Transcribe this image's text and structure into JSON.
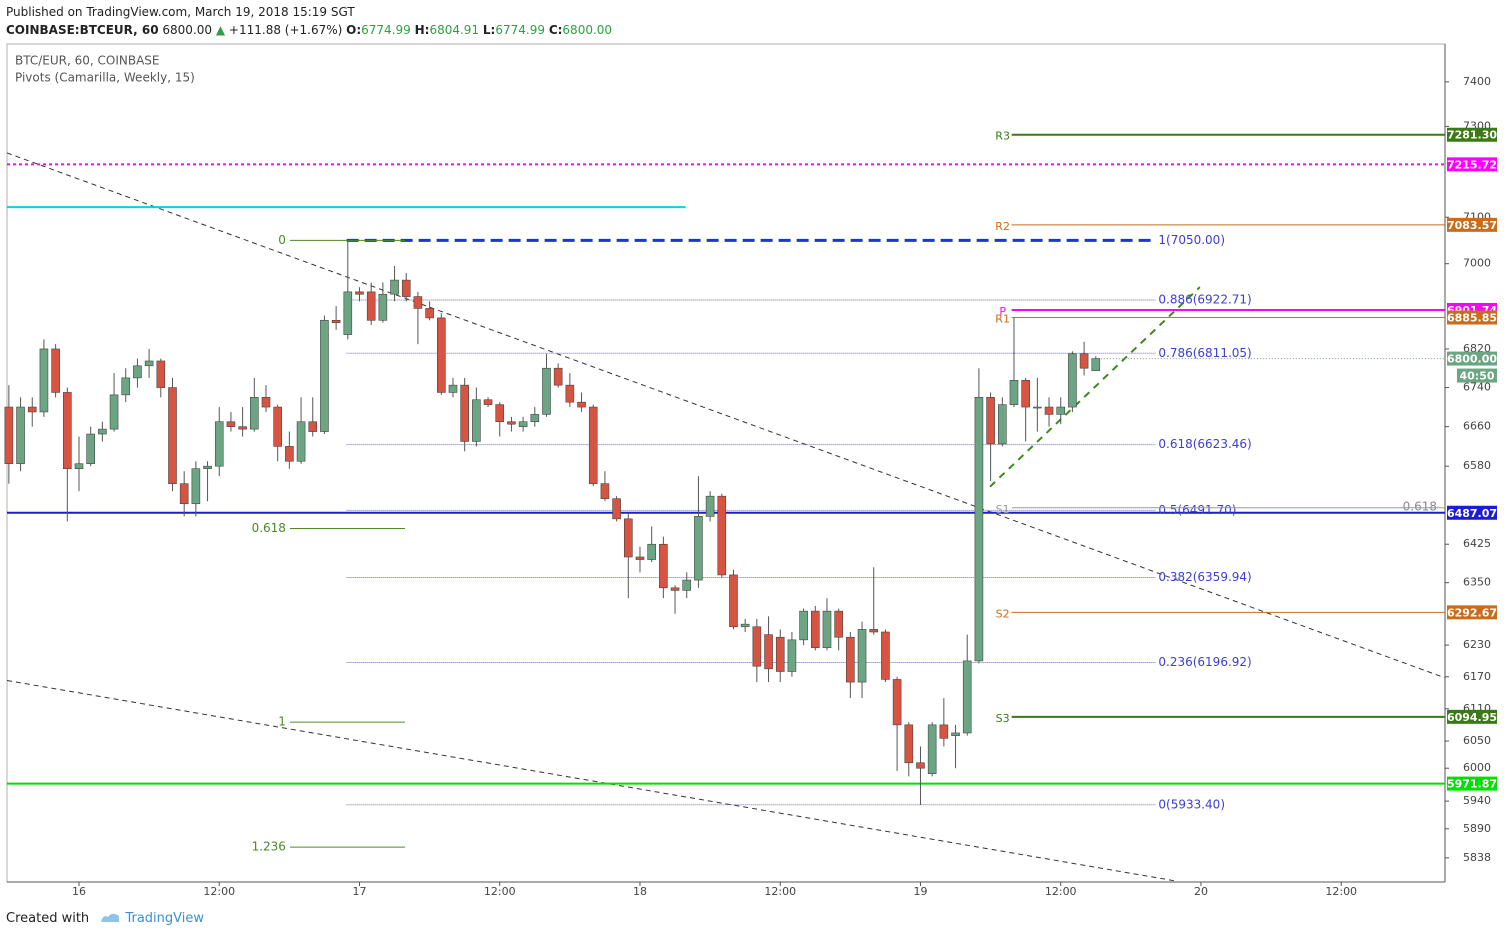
{
  "header": {
    "published": "Published on TradingView.com, March 19, 2018 15:19 SGT",
    "symbol": "COINBASE:BTCEUR, 60",
    "price": "6800.00",
    "arrow": "▲",
    "change": "+111.88 (+1.67%)",
    "ohlc": [
      {
        "key": "O:",
        "value": "6774.99"
      },
      {
        "key": "H:",
        "value": "6804.91"
      },
      {
        "key": "L:",
        "value": "6774.99"
      },
      {
        "key": "C:",
        "value": "6800.00"
      }
    ]
  },
  "legend": {
    "series": "BTC/EUR, 60, COINBASE",
    "indicator": "Pivots (Camarilla, Weekly, 15)"
  },
  "footer": {
    "created": "Created with",
    "brand": "TradingView"
  },
  "chart_data": {
    "type": "candlestick",
    "log_scale": true,
    "up_color": "#6ba583",
    "down_color": "#d75442",
    "xlim": [
      -6.16,
      116.88
    ],
    "ylim": [
      5795,
      7486
    ],
    "xticks": [
      {
        "value": 0,
        "label": "16"
      },
      {
        "value": 12,
        "label": "12:00"
      },
      {
        "value": 24,
        "label": "17"
      },
      {
        "value": 36,
        "label": "12:00"
      },
      {
        "value": 48,
        "label": "18"
      },
      {
        "value": 60,
        "label": "12:00"
      },
      {
        "value": 72,
        "label": "19"
      },
      {
        "value": 84,
        "label": "12:00"
      },
      {
        "value": 96,
        "label": "20"
      },
      {
        "value": 108,
        "label": "12:00"
      }
    ],
    "yticks": [
      5838,
      5890,
      5940,
      6000,
      6050,
      6110,
      6170,
      6230,
      6350,
      6425,
      6580,
      6660,
      6740,
      6820,
      7000,
      7100,
      7300,
      7400
    ],
    "x": [
      -6,
      -5,
      -4,
      -3,
      -2,
      -1,
      0,
      1,
      2,
      3,
      4,
      5,
      6,
      7,
      8,
      9,
      10,
      11,
      12,
      13,
      14,
      15,
      16,
      17,
      18,
      19,
      20,
      21,
      22,
      23,
      24,
      25,
      26,
      27,
      28,
      29,
      30,
      31,
      32,
      33,
      34,
      35,
      36,
      37,
      38,
      39,
      40,
      41,
      42,
      43,
      44,
      45,
      46,
      47,
      48,
      49,
      50,
      51,
      52,
      53,
      54,
      55,
      56,
      57,
      58,
      59,
      60,
      61,
      62,
      63,
      64,
      65,
      66,
      67,
      68,
      69,
      70,
      71,
      72,
      73,
      74,
      75,
      76,
      77,
      78,
      79,
      80,
      81,
      82,
      83,
      84,
      85,
      86,
      87
    ],
    "open": [
      6700,
      6585,
      6700,
      6690,
      6820,
      6730,
      6575,
      6585,
      6645,
      6655,
      6725,
      6760,
      6785,
      6795,
      6740,
      6545,
      6505,
      6575,
      6580,
      6670,
      6660,
      6655,
      6720,
      6700,
      6620,
      6590,
      6670,
      6650,
      6880,
      6850,
      6940,
      6940,
      6880,
      6935,
      6965,
      6930,
      6905,
      6885,
      6730,
      6745,
      6630,
      6715,
      6705,
      6670,
      6660,
      6670,
      6685,
      6780,
      6745,
      6710,
      6700,
      6545,
      6515,
      6475,
      6400,
      6395,
      6425,
      6340,
      6335,
      6355,
      6480,
      6520,
      6365,
      6265,
      6265,
      6250,
      6245,
      6180,
      6240,
      6295,
      6225,
      6295,
      6245,
      6160,
      6260,
      6255,
      6165,
      6080,
      6010,
      5990,
      6080,
      6060,
      6065,
      6200,
      6720,
      6625,
      6705,
      6755,
      6700,
      6700,
      6685,
      6700,
      6810,
      6774.99
    ],
    "high": [
      6745,
      6720,
      6720,
      6840,
      6830,
      6740,
      6640,
      6660,
      6670,
      6770,
      6780,
      6800,
      6820,
      6800,
      6760,
      6570,
      6590,
      6590,
      6700,
      6690,
      6700,
      6760,
      6745,
      6705,
      6650,
      6720,
      6720,
      6890,
      6910,
      7050,
      6950,
      6960,
      6960,
      6995,
      6980,
      6940,
      6920,
      6895,
      6760,
      6760,
      6740,
      6720,
      6710,
      6680,
      6680,
      6700,
      6810,
      6790,
      6770,
      6730,
      6705,
      6570,
      6520,
      6485,
      6420,
      6460,
      6440,
      6345,
      6370,
      6560,
      6530,
      6525,
      6375,
      6280,
      6280,
      6285,
      6260,
      6255,
      6300,
      6305,
      6320,
      6300,
      6255,
      6275,
      6380,
      6260,
      6170,
      6085,
      6040,
      6085,
      6130,
      6080,
      6250,
      6780,
      6730,
      6720,
      6885,
      6760,
      6760,
      6720,
      6720,
      6815,
      6835,
      6804.91
    ],
    "low": [
      6545,
      6570,
      6660,
      6680,
      6720,
      6470,
      6530,
      6580,
      6630,
      6650,
      6710,
      6740,
      6760,
      6720,
      6530,
      6480,
      6480,
      6510,
      6560,
      6650,
      6640,
      6650,
      6690,
      6590,
      6575,
      6585,
      6640,
      6645,
      6860,
      6840,
      6920,
      6870,
      6875,
      6920,
      6920,
      6830,
      6880,
      6725,
      6720,
      6610,
      6620,
      6700,
      6640,
      6650,
      6650,
      6660,
      6680,
      6740,
      6700,
      6690,
      6540,
      6510,
      6470,
      6320,
      6370,
      6390,
      6320,
      6290,
      6320,
      6340,
      6470,
      6360,
      6260,
      6255,
      6160,
      6160,
      6160,
      6170,
      6230,
      6220,
      6220,
      6220,
      6130,
      6130,
      6250,
      6160,
      5995,
      5985,
      5933,
      5985,
      6040,
      6000,
      6060,
      6195,
      6550,
      6620,
      6700,
      6630,
      6650,
      6660,
      6665,
      6690,
      6765,
      6774.99
    ],
    "close": [
      6585,
      6700,
      6690,
      6820,
      6730,
      6575,
      6585,
      6645,
      6655,
      6725,
      6760,
      6785,
      6795,
      6740,
      6545,
      6505,
      6575,
      6580,
      6670,
      6660,
      6655,
      6720,
      6700,
      6620,
      6590,
      6670,
      6650,
      6880,
      6875,
      6940,
      6935,
      6880,
      6935,
      6965,
      6930,
      6905,
      6885,
      6730,
      6745,
      6630,
      6715,
      6705,
      6670,
      6665,
      6670,
      6685,
      6780,
      6745,
      6710,
      6700,
      6545,
      6515,
      6475,
      6400,
      6395,
      6425,
      6340,
      6335,
      6355,
      6480,
      6520,
      6365,
      6265,
      6270,
      6190,
      6185,
      6180,
      6240,
      6295,
      6225,
      6295,
      6245,
      6160,
      6260,
      6255,
      6165,
      6080,
      6010,
      6000,
      6080,
      6055,
      6065,
      6200,
      6720,
      6625,
      6705,
      6755,
      6700,
      6700,
      6685,
      6700,
      6810,
      6780,
      6800
    ],
    "current_price": {
      "value": 6800,
      "label": "6800.00",
      "countdown": "40:50",
      "color": "#6ba583"
    },
    "horizontal_lines": [
      {
        "value": 7215.72,
        "label": "7215.72",
        "color": "#ff00ff",
        "dash": "3,3"
      },
      {
        "value": 5971.87,
        "label": "5971.87",
        "color": "#00e000",
        "dash": ""
      },
      {
        "value": 6487.07,
        "label": "6487.07",
        "color": "#1c1cd4",
        "dash": "",
        "tag": "0.618"
      },
      {
        "value": 7122,
        "color": "#00d4e0",
        "dash": "",
        "from": -6.16,
        "to": 51.9
      }
    ],
    "trendlines": [
      {
        "x": [
          -6.16,
          116.88
        ],
        "y": [
          7241,
          6168
        ],
        "color": "#333333",
        "dash": "5,4"
      },
      {
        "x": [
          -6.16,
          93.78
        ],
        "y": [
          6163,
          5797
        ],
        "color": "#333333",
        "dash": "5,4"
      },
      {
        "x": [
          77.95,
          95.9
        ],
        "y": [
          6539,
          6950
        ],
        "color": "#3a8a1a",
        "dash": "7,6"
      }
    ],
    "pivots": {
      "from": 79.8,
      "to": 116.88,
      "levels": [
        {
          "name": "R3",
          "value": 7281.3,
          "label": "7281.30",
          "color": "#3a7a14"
        },
        {
          "name": "R2",
          "value": 7083.57,
          "label": "7083.57",
          "color": "#c96c1d"
        },
        {
          "name": "P",
          "value": 6901.74,
          "label": "6901.74",
          "color": "#ff00ff"
        },
        {
          "name": "R1",
          "value": 6885.85,
          "label": "6885.85",
          "color": "#c96c1d"
        },
        {
          "name": "S1",
          "value": 6497,
          "color": "#9a9aa0"
        },
        {
          "name": "S2",
          "value": 6292.67,
          "label": "6292.67",
          "color": "#c96c1d"
        },
        {
          "name": "S3",
          "value": 6094.95,
          "label": "6094.95",
          "color": "#3a7a14"
        }
      ]
    },
    "fib_retracement": {
      "from": 22.9,
      "to": 92.1,
      "color": "#6a6ad0",
      "text_color": "#3d3dd4",
      "levels": [
        {
          "label": "0(5933.40)",
          "price": 5933.4
        },
        {
          "label": "0.236(6196.92)",
          "price": 6196.92
        },
        {
          "label": "0.382(6359.94)",
          "price": 6359.94
        },
        {
          "label": "0.5(6491.70)",
          "price": 6491.7
        },
        {
          "label": "0.618(6623.46)",
          "price": 6623.46
        },
        {
          "label": "0.786(6811.05)",
          "price": 6811.05
        },
        {
          "label": "0.886(6922.71)",
          "price": 6922.71
        },
        {
          "label": "1(7050.00)",
          "price": 7050,
          "bold": true,
          "color": "#1a35d8"
        }
      ]
    },
    "fib_extension": {
      "from": 18.05,
      "to": 27.9,
      "color": "#4a8a2a",
      "levels": [
        {
          "label": "0",
          "price": 7050
        },
        {
          "label": "0.618",
          "price": 6456
        },
        {
          "label": "1",
          "price": 6085
        },
        {
          "label": "1.236",
          "price": 5857
        }
      ]
    }
  }
}
